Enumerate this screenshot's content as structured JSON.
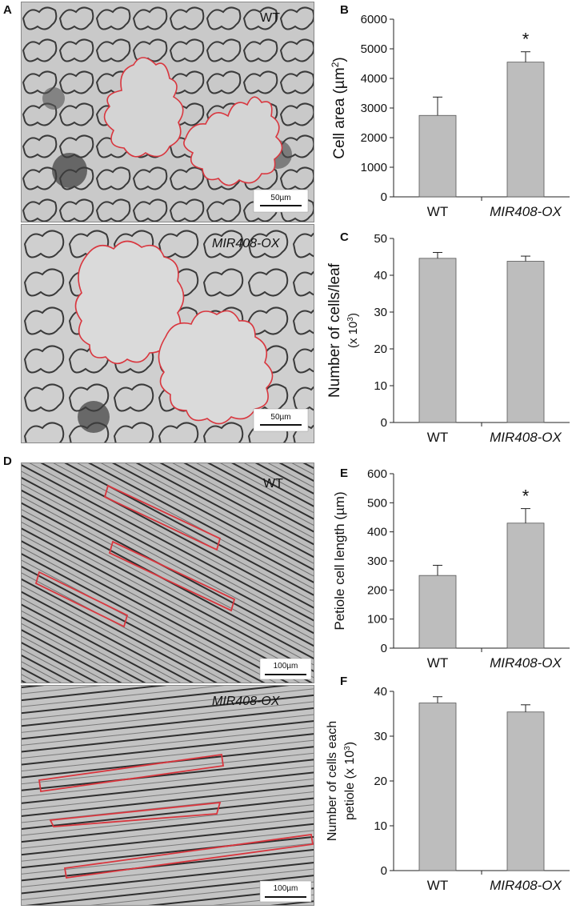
{
  "figure": {
    "panel_labels": [
      "A",
      "B",
      "C",
      "D",
      "E",
      "F"
    ],
    "micrographs": [
      {
        "panel": "A",
        "genotype": "WT",
        "scale_bar": "50µm",
        "cell_type": "pavement"
      },
      {
        "panel": "A",
        "genotype": "MIR408-OX",
        "scale_bar": "50µm",
        "cell_type": "pavement"
      },
      {
        "panel": "D",
        "genotype": "WT",
        "scale_bar": "100µm",
        "cell_type": "petiole"
      },
      {
        "panel": "D",
        "genotype": "MIR408-OX",
        "scale_bar": "100µm",
        "cell_type": "petiole"
      }
    ],
    "colors": {
      "bar": "#bdbdbd",
      "cell_outline": "#d9363e",
      "axis": "#222222"
    }
  },
  "chart_data": [
    {
      "panel": "B",
      "type": "bar",
      "categories": [
        "WT",
        "MIR408-OX"
      ],
      "values": [
        2750,
        4550
      ],
      "errors": [
        620,
        350
      ],
      "significance": [
        "",
        "*"
      ],
      "ylabel_main": "Cell area (µm",
      "ylabel_sup": "2",
      "ylabel_tail": ")",
      "ylim": [
        0,
        6000
      ],
      "yticks": [
        0,
        1000,
        2000,
        3000,
        4000,
        5000,
        6000
      ]
    },
    {
      "panel": "C",
      "type": "bar",
      "categories": [
        "WT",
        "MIR408-OX"
      ],
      "values": [
        44.6,
        43.8
      ],
      "errors": [
        1.6,
        1.4
      ],
      "significance": [
        "",
        ""
      ],
      "ylabel_main": "Number of cells/leaf",
      "ylabel2_main": "(x 10",
      "ylabel2_sup": "3",
      "ylabel2_tail": ")",
      "ylim": [
        0,
        50
      ],
      "yticks": [
        0,
        10,
        20,
        30,
        40,
        50
      ]
    },
    {
      "panel": "E",
      "type": "bar",
      "categories": [
        "WT",
        "MIR408-OX"
      ],
      "values": [
        250,
        430
      ],
      "errors": [
        35,
        50
      ],
      "significance": [
        "",
        "*"
      ],
      "ylabel_main": "Petiole cell length (µm)",
      "ylim": [
        0,
        600
      ],
      "yticks": [
        0,
        100,
        200,
        300,
        400,
        500,
        600
      ]
    },
    {
      "panel": "F",
      "type": "bar",
      "categories": [
        "WT",
        "MIR408-OX"
      ],
      "values": [
        37.4,
        35.4
      ],
      "errors": [
        1.4,
        1.6
      ],
      "significance": [
        "",
        ""
      ],
      "ylabel_main": "Number of cells each",
      "ylabel2_main": "petiole (x 10",
      "ylabel2_sup": "3",
      "ylabel2_tail": ")",
      "ylim": [
        0,
        40
      ],
      "yticks": [
        0,
        10,
        20,
        30,
        40
      ]
    }
  ]
}
